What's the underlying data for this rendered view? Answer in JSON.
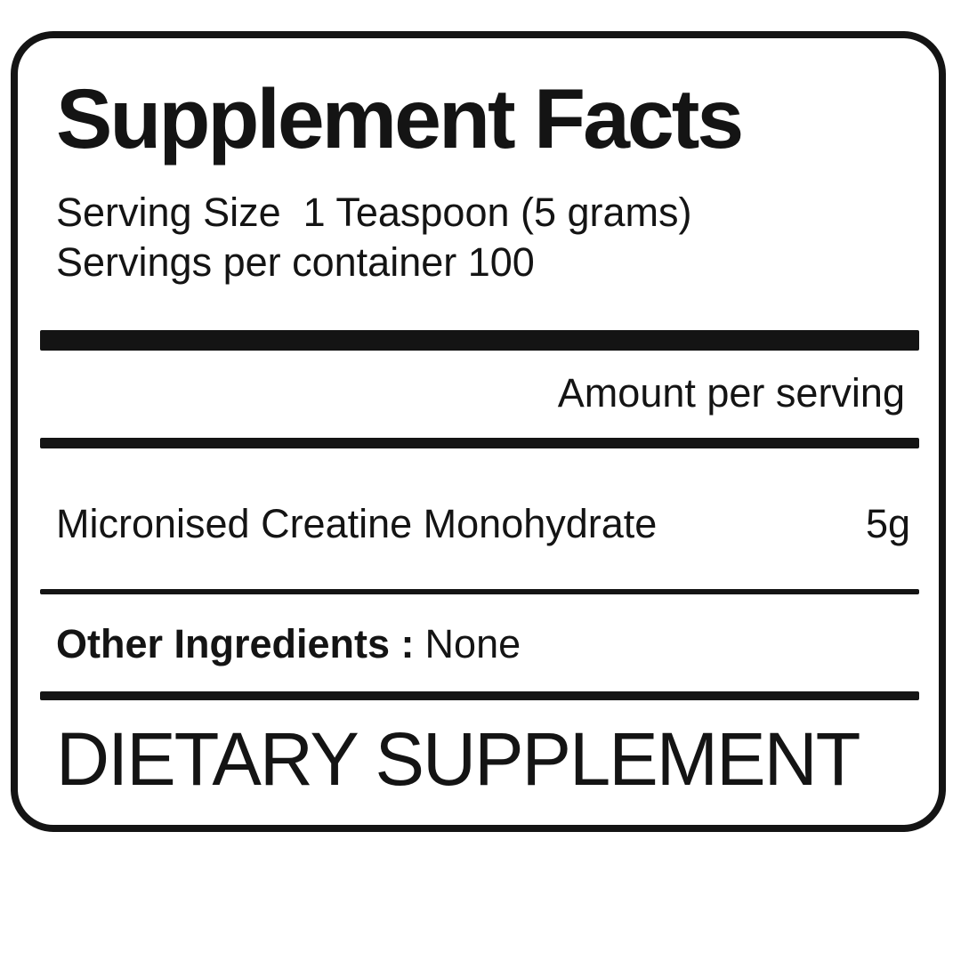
{
  "panel": {
    "title": "Supplement Facts",
    "serving_size_line": "Serving Size  1 Teaspoon (5 grams)",
    "servings_per_container_line": "Servings per container 100",
    "amount_per_serving_header": "Amount per serving",
    "ingredients": [
      {
        "name": "Micronised Creatine Monohydrate",
        "amount": "5g"
      }
    ],
    "other_ingredients_label": "Other Ingredients :",
    "other_ingredients_value": "None",
    "footer": "DIETARY SUPPLEMENT",
    "colors": {
      "ink": "#141414",
      "background": "#ffffff"
    }
  }
}
